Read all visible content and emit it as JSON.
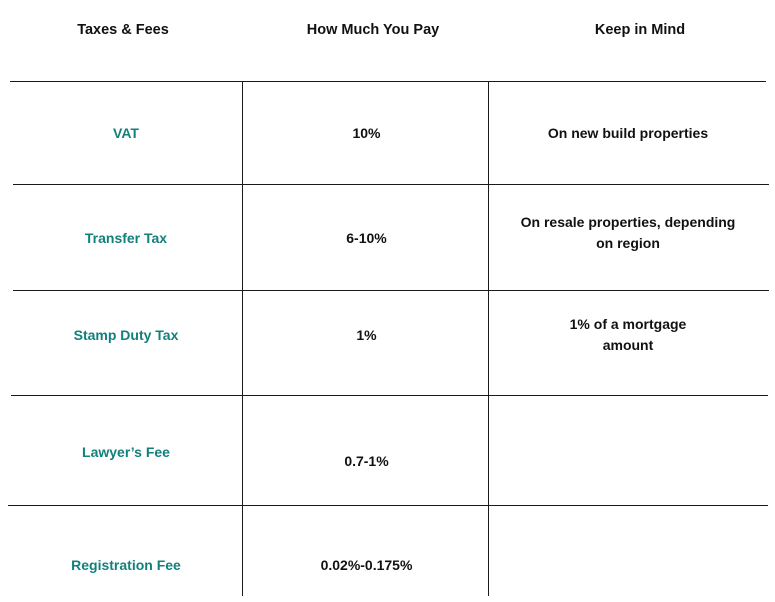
{
  "headers": {
    "col1": "Taxes & Fees",
    "col2": "How Much You Pay",
    "col3": "Keep in Mind"
  },
  "rows": [
    {
      "name": "VAT",
      "amount": "10%",
      "note": "On new build properties"
    },
    {
      "name": "Transfer Tax",
      "amount": "6-10%",
      "note": "On resale properties, depending on region"
    },
    {
      "name": "Stamp Duty Tax",
      "amount": "1%",
      "note": "1% of a mortgage amount"
    },
    {
      "name": "Lawyer’s Fee",
      "amount": "0.7-1%",
      "note": ""
    },
    {
      "name": "Registration Fee",
      "amount": "0.02%-0.175%",
      "note": ""
    }
  ],
  "colors": {
    "fee_name": "#13807c",
    "text": "#111111",
    "rule": "#1a1a1a"
  }
}
